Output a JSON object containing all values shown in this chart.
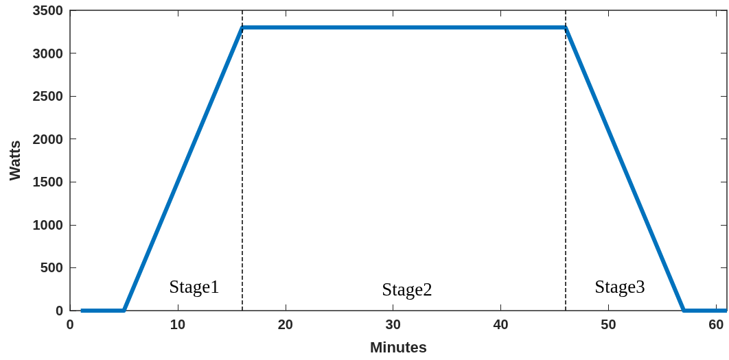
{
  "chart_data": {
    "type": "line",
    "xlabel": "Minutes",
    "ylabel": "Watts",
    "x": [
      1,
      5,
      16,
      46,
      57,
      61
    ],
    "series": [
      {
        "color": "#0072bd",
        "values": [
          0,
          0,
          3300,
          3300,
          0,
          0
        ]
      }
    ],
    "xlim": [
      0,
      61
    ],
    "xticks": [
      0,
      10,
      20,
      30,
      40,
      50,
      60
    ],
    "ylim": [
      0,
      3500
    ],
    "yticks": [
      0,
      500,
      1000,
      1500,
      2000,
      2500,
      3000,
      3500
    ],
    "grid": false,
    "marker": "none",
    "line_style": "solid",
    "ref_lines": [
      {
        "axis": "x",
        "value": 16,
        "color": "#000000",
        "line_style": "dashed"
      },
      {
        "axis": "x",
        "value": 46,
        "color": "#000000",
        "line_style": "dashed"
      }
    ],
    "annotations": [
      "Stage1",
      "Stage2",
      "Stage3"
    ]
  }
}
